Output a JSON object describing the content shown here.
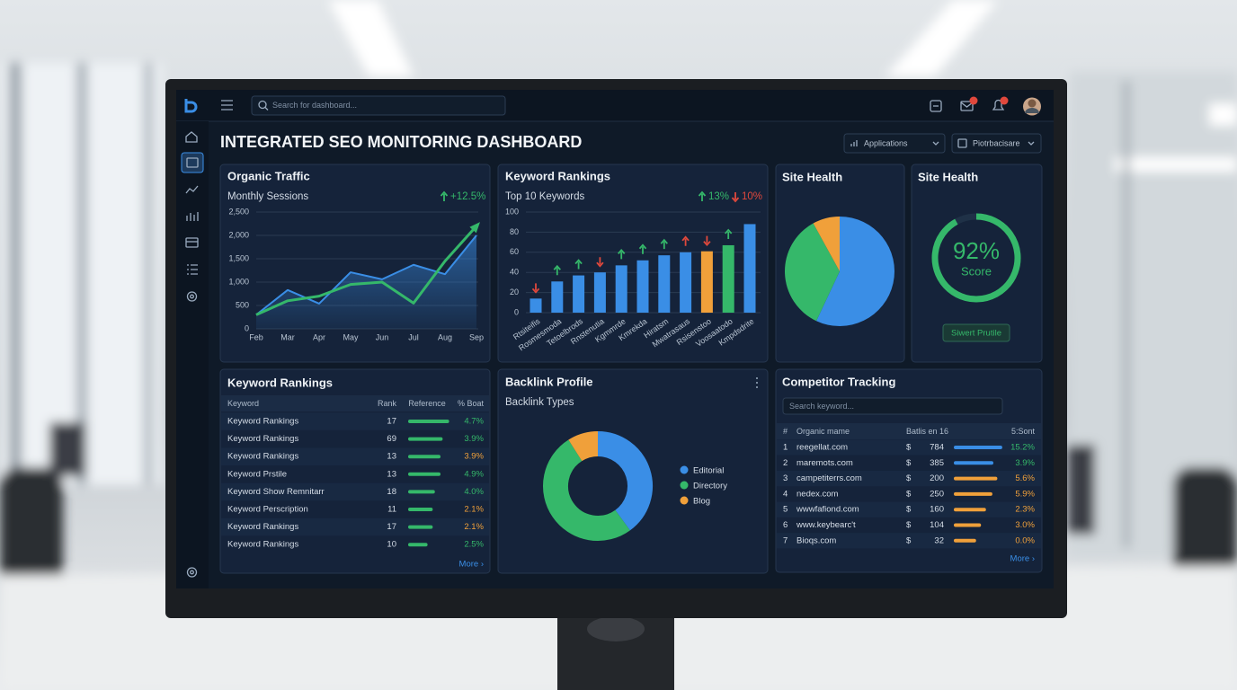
{
  "header": {
    "search_placeholder": "Search for dashboard...",
    "title": "INTEGRATED SEO MONITORING DASHBOARD",
    "filters": [
      "Applications",
      "Piotrbacisare"
    ]
  },
  "chart_data": [
    {
      "type": "line",
      "title": "Organic Traffic",
      "subtitle": "Monthly Sessions",
      "changes": [
        {
          "label": "+12.5%",
          "direction": "up"
        }
      ],
      "categories": [
        "Feb",
        "Mar",
        "Apr",
        "May",
        "Jun",
        "Jul",
        "Aug",
        "Sep"
      ],
      "series": [
        {
          "color": "#3a8ee6",
          "area": true,
          "values": [
            300,
            830,
            540,
            1210,
            1060,
            1370,
            1170,
            2000
          ]
        },
        {
          "color": "#35b86a",
          "arrow": true,
          "values": [
            300,
            600,
            700,
            950,
            1000,
            550,
            1450,
            2200
          ]
        }
      ],
      "ylim": [
        0,
        2500
      ],
      "yticks": [
        0,
        500,
        {
          "value": 1000,
          "label": "1,000"
        },
        {
          "value": 1500,
          "label": "1,500"
        },
        {
          "value": 2000,
          "label": "2,000"
        },
        {
          "value": 2500,
          "label": "2,500"
        }
      ],
      "grid": true
    },
    {
      "type": "bar",
      "title": "Keyword Rankings",
      "subtitle": "Top 10 Keywords",
      "changes": [
        {
          "label": "13%",
          "direction": "up"
        },
        {
          "label": "10%",
          "direction": "down"
        }
      ],
      "categories": [
        "Rtsiteifis",
        "Rosmesmoda",
        "Tetoelbrods",
        "Rnstenutia",
        "Kgmmrde",
        "Kmrekda",
        "Hiratsm",
        "Mwatrasaus",
        "Rsisenstoo",
        "Voosaatodo",
        "Kmpdsdrite"
      ],
      "values": [
        14,
        31,
        37,
        40,
        47,
        52,
        57,
        60,
        61,
        67,
        88
      ],
      "colors": [
        "#3a8ee6",
        "#3a8ee6",
        "#3a8ee6",
        "#3a8ee6",
        "#3a8ee6",
        "#3a8ee6",
        "#3a8ee6",
        "#3a8ee6",
        "#f0a03a",
        "#35b86a",
        "#3a8ee6"
      ],
      "trends": [
        "down",
        "up",
        "up",
        "down",
        "up",
        "up",
        "up",
        "up",
        "down",
        "up",
        null
      ],
      "ylim": [
        0,
        100
      ],
      "yticks": [
        0,
        20,
        40,
        60,
        80,
        100
      ],
      "grid": true
    },
    {
      "type": "pie",
      "title": "Site Health",
      "values": [
        57,
        35,
        8
      ],
      "colors": [
        "#3a8ee6",
        "#35b86a",
        "#f0a03a"
      ]
    },
    {
      "type": "gauge",
      "title": "Site Health",
      "value": 92,
      "value_label": "92%",
      "caption": "Score",
      "button": "Siwert Prutile",
      "ylim": [
        0,
        100
      ],
      "color": "#35b86a"
    },
    {
      "type": "donut",
      "title": "Backlink Profile",
      "subtitle": "Backlink Types",
      "categories": [
        "Editorial",
        "Directory",
        "Blog"
      ],
      "values": [
        40,
        51,
        9
      ],
      "colors": [
        "#3a8ee6",
        "#35b86a",
        "#f0a03a"
      ]
    }
  ],
  "keyword_table": {
    "title": "Keyword Rankings",
    "columns": [
      "Keyword",
      "Rank",
      "Reference",
      "% Boat"
    ],
    "more": "More ›",
    "rows": [
      {
        "keyword": "Keyword Rankings",
        "rank": 17,
        "reference": 95,
        "change": "4.7%",
        "color": "#35b86a"
      },
      {
        "keyword": "Keyword Rankings",
        "rank": 69,
        "reference": 80,
        "change": "3.9%",
        "color": "#35b86a"
      },
      {
        "keyword": "Keyword Rankings",
        "rank": 13,
        "reference": 75,
        "change": "3.9%",
        "color": "#f0a03a"
      },
      {
        "keyword": "Keyword Prstile",
        "rank": 13,
        "reference": 75,
        "change": "4.9%",
        "color": "#35b86a"
      },
      {
        "keyword": "Keyword Show Remnitarr",
        "rank": 18,
        "reference": 62,
        "change": "4.0%",
        "color": "#35b86a"
      },
      {
        "keyword": "Keyword Perscription",
        "rank": 11,
        "reference": 57,
        "change": "2.1%",
        "color": "#f0a03a"
      },
      {
        "keyword": "Keyword Rankings",
        "rank": 17,
        "reference": 57,
        "change": "2.1%",
        "color": "#f0a03a"
      },
      {
        "keyword": "Keyword Rankings",
        "rank": 10,
        "reference": 45,
        "change": "2.5%",
        "color": "#35b86a"
      }
    ]
  },
  "competitor_table": {
    "title": "Competitor Tracking",
    "search_placeholder": "Search keyword...",
    "columns": [
      "#",
      "Organic mame",
      "Batlis en 16",
      "5:Sont"
    ],
    "more": "More ›",
    "rows": [
      {
        "rank": 1,
        "domain": "reegellat.com",
        "currency": "$",
        "traffic": 784,
        "bar": 98,
        "change": "15.2%",
        "color": "#3a8ee6",
        "change_color": "#35b86a"
      },
      {
        "rank": 2,
        "domain": "maremots.com",
        "currency": "$",
        "traffic": 385,
        "bar": 80,
        "change": "3.9%",
        "color": "#3a8ee6",
        "change_color": "#35b86a"
      },
      {
        "rank": 3,
        "domain": "campetiterrs.com",
        "currency": "$",
        "traffic": 200,
        "bar": 88,
        "change": "5.6%",
        "color": "#f0a03a",
        "change_color": "#f0a03a"
      },
      {
        "rank": 4,
        "domain": "nedex.com",
        "currency": "$",
        "traffic": 250,
        "bar": 78,
        "change": "5.9%",
        "color": "#f0a03a",
        "change_color": "#f0a03a"
      },
      {
        "rank": 5,
        "domain": "wwwfafiond.com",
        "currency": "$",
        "traffic": 160,
        "bar": 65,
        "change": "2.3%",
        "color": "#f0a03a",
        "change_color": "#f0a03a"
      },
      {
        "rank": 6,
        "domain": "www.keybearc't",
        "currency": "$",
        "traffic": 104,
        "bar": 55,
        "change": "3.0%",
        "color": "#f0a03a",
        "change_color": "#f0a03a"
      },
      {
        "rank": 7,
        "domain": "Bioqs.com",
        "currency": "$",
        "traffic": 32,
        "bar": 45,
        "change": "0.0%",
        "color": "#f0a03a",
        "change_color": "#f0a03a"
      }
    ]
  }
}
